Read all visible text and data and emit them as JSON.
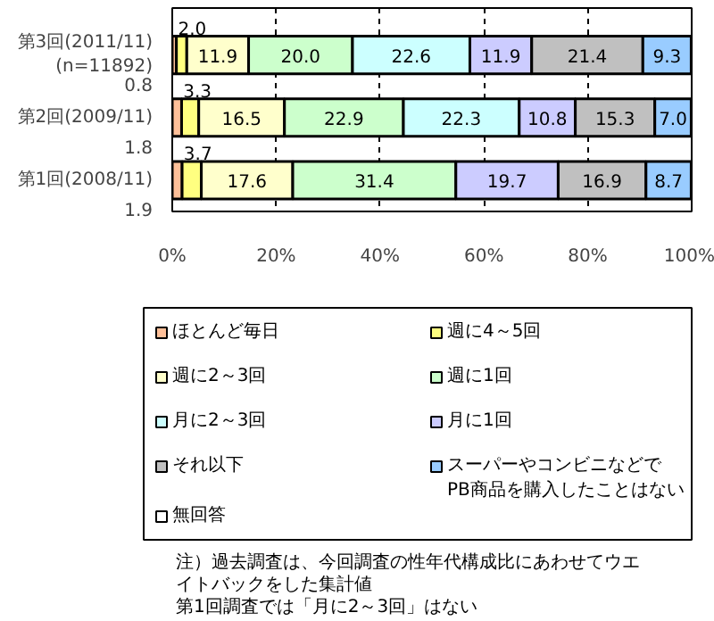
{
  "chart_data": {
    "type": "bar",
    "orientation": "horizontal",
    "stacked": true,
    "grid": "x",
    "legend": "bottom",
    "categories": [
      "第3回(2011/11)\n(n=11892)",
      "第2回(2009/11)",
      "第1回(2008/11)"
    ],
    "xlim": [
      0,
      100
    ],
    "xticks": [
      {
        "value": 0,
        "label": "0%"
      },
      {
        "value": 20,
        "label": "20%"
      },
      {
        "value": 40,
        "label": "40%"
      },
      {
        "value": 60,
        "label": "60%"
      },
      {
        "value": 80,
        "label": "80%"
      },
      {
        "value": 100,
        "label": "100%"
      }
    ],
    "series": [
      {
        "name": "ほとんど毎日",
        "color": "#ffc099",
        "values": [
          0.8,
          1.8,
          1.9
        ],
        "value_labels": [
          "0.8",
          "1.8",
          "1.9"
        ]
      },
      {
        "name": "週に4～5回",
        "color": "#ffff80",
        "values": [
          2.0,
          3.3,
          3.7
        ],
        "value_labels": [
          "2.0",
          "3.3",
          "3.7"
        ]
      },
      {
        "name": "週に2～3回",
        "color": "#ffffcc",
        "values": [
          11.9,
          16.5,
          17.6
        ],
        "value_labels": [
          "11.9",
          "16.5",
          "17.6"
        ]
      },
      {
        "name": "週に1回",
        "color": "#ccffcc",
        "values": [
          20.0,
          22.9,
          31.4
        ],
        "value_labels": [
          "20.0",
          "22.9",
          "31.4"
        ]
      },
      {
        "name": "月に2～3回",
        "color": "#ccffff",
        "values": [
          22.6,
          22.3,
          null
        ],
        "value_labels": [
          "22.6",
          "22.3",
          null
        ]
      },
      {
        "name": "月に1回",
        "color": "#ccccff",
        "values": [
          11.9,
          10.8,
          19.7
        ],
        "value_labels": [
          "11.9",
          "10.8",
          "19.7"
        ]
      },
      {
        "name": "それ以下",
        "color": "#c0c0c0",
        "values": [
          21.4,
          15.3,
          16.9
        ],
        "value_labels": [
          "21.4",
          "15.3",
          "16.9"
        ]
      },
      {
        "name": "スーパーやコンビニなどで\nPB商品を購入したことはない",
        "color": "#99ccff",
        "values": [
          9.3,
          7.0,
          8.7
        ],
        "value_labels": [
          "9.3",
          "7.0",
          "8.7"
        ]
      },
      {
        "name": "無回答",
        "color": "#ffffff",
        "values": [
          null,
          null,
          null
        ]
      }
    ],
    "annotations": [
      "注）過去調査は、今回調査の性年代構成比にあわせてウエイトバックをした集計値",
      "第1回調査では「月に2～3回」はない"
    ]
  }
}
